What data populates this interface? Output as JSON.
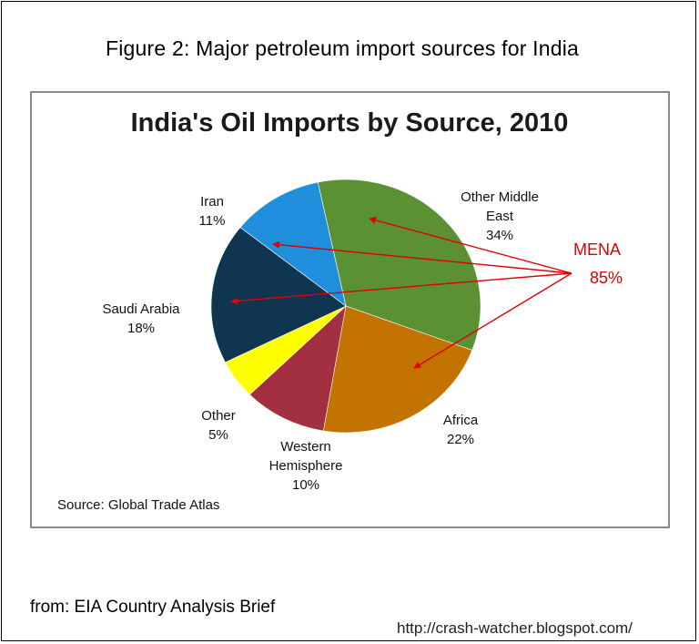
{
  "figure_title": "Figure 2: Major petroleum import sources for India",
  "source_note": "Source: Global Trade Atlas",
  "footer": {
    "from": "from: EIA Country Analysis Brief",
    "url": "http://crash-watcher.blogspot.com/"
  },
  "annotation": {
    "label": "MENA",
    "value": "85%",
    "color": "#e00000"
  },
  "chart_data": {
    "type": "pie",
    "title": "India's Oil Imports by Source, 2010",
    "unit": "%",
    "slices": [
      {
        "name": "Other Middle East",
        "label_lines": [
          "Other Middle",
          "East"
        ],
        "value": 34,
        "value_label": "34%",
        "color": "#5b9132"
      },
      {
        "name": "Africa",
        "label_lines": [
          "Africa"
        ],
        "value": 22,
        "value_label": "22%",
        "color": "#c27300"
      },
      {
        "name": "Western Hemisphere",
        "label_lines": [
          "Western",
          "Hemisphere"
        ],
        "value": 10,
        "value_label": "10%",
        "color": "#a33040"
      },
      {
        "name": "Other",
        "label_lines": [
          "Other"
        ],
        "value": 5,
        "value_label": "5%",
        "color": "#ffff00"
      },
      {
        "name": "Saudi Arabia",
        "label_lines": [
          "Saudi Arabia"
        ],
        "value": 18,
        "value_label": "18%",
        "color": "#0f3550"
      },
      {
        "name": "Iran",
        "label_lines": [
          "Iran"
        ],
        "value": 11,
        "value_label": "11%",
        "color": "#1f8fdc"
      }
    ],
    "mena_members": [
      "Other Middle East",
      "Africa",
      "Saudi Arabia",
      "Iran"
    ]
  }
}
